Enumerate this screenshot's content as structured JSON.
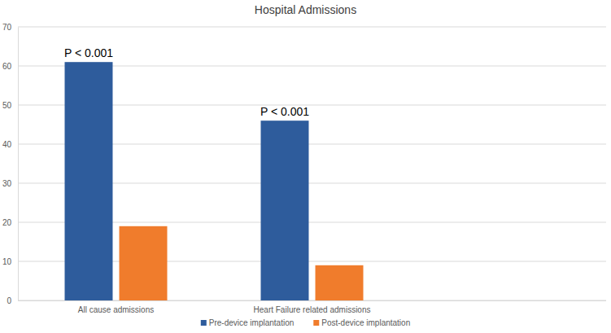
{
  "chart_data": {
    "type": "bar",
    "title": "Hospital Admissions",
    "categories": [
      "All cause admissions",
      "Heart Failure related admissions"
    ],
    "series": [
      {
        "name": "Pre-device implantation",
        "color": "#2e5c9c",
        "values": [
          61,
          46
        ]
      },
      {
        "name": "Post-device implantation",
        "color": "#f07c2c",
        "values": [
          19,
          9
        ]
      }
    ],
    "annotations": [
      "P < 0.001",
      "P < 0.001"
    ],
    "ylim": [
      0,
      70
    ],
    "yticks": [
      0,
      10,
      20,
      30,
      40,
      50,
      60,
      70
    ],
    "grid": true,
    "legend": "bottom"
  }
}
